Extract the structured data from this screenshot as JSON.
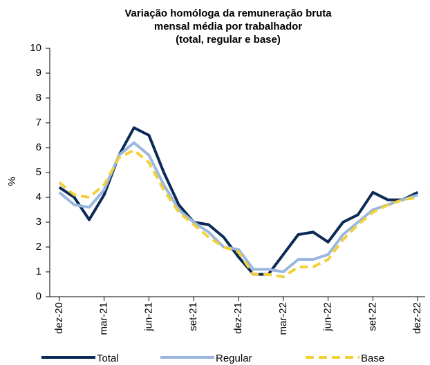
{
  "chart_data": {
    "type": "line",
    "title": [
      "Variação homóloga da remuneração bruta",
      "mensal média por trabalhador",
      "(total, regular e base)"
    ],
    "y_label": "%",
    "categories": [
      "dez-20",
      null,
      null,
      "mar-21",
      null,
      null,
      "jun-21",
      null,
      null,
      "set-21",
      null,
      null,
      "dez-21",
      null,
      null,
      "mar-22",
      null,
      null,
      "jun-22",
      null,
      null,
      "set-22",
      null,
      null,
      "dez-22"
    ],
    "series": [
      {
        "name": "Total",
        "color": "#0b2a55",
        "dashed": false,
        "values": [
          4.4,
          4.0,
          3.1,
          4.1,
          5.7,
          6.8,
          6.5,
          5.0,
          3.7,
          3.0,
          2.9,
          2.4,
          1.6,
          0.9,
          0.9,
          1.7,
          2.5,
          2.6,
          2.2,
          3.0,
          3.3,
          4.2,
          3.9,
          3.9,
          4.2
        ]
      },
      {
        "name": "Regular",
        "color": "#9ab7df",
        "dashed": false,
        "values": [
          4.2,
          3.7,
          3.6,
          4.3,
          5.7,
          6.2,
          5.7,
          4.5,
          3.5,
          3.0,
          2.6,
          2.0,
          1.9,
          1.1,
          1.1,
          1.0,
          1.5,
          1.5,
          1.7,
          2.5,
          3.0,
          3.5,
          3.7,
          3.9,
          4.1
        ]
      },
      {
        "name": "Base",
        "color": "#f2d03a",
        "dashed": true,
        "values": [
          4.6,
          4.1,
          4.0,
          4.5,
          5.6,
          5.9,
          5.4,
          4.3,
          3.4,
          2.9,
          2.4,
          2.0,
          1.8,
          0.9,
          0.9,
          0.8,
          1.2,
          1.2,
          1.5,
          2.3,
          2.9,
          3.4,
          3.7,
          3.9,
          4.0
        ]
      }
    ],
    "ylim": [
      0,
      10
    ],
    "yticks": [
      0,
      1,
      2,
      3,
      4,
      5,
      6,
      7,
      8,
      9,
      10
    ],
    "grid": false,
    "legend": "bottom"
  }
}
